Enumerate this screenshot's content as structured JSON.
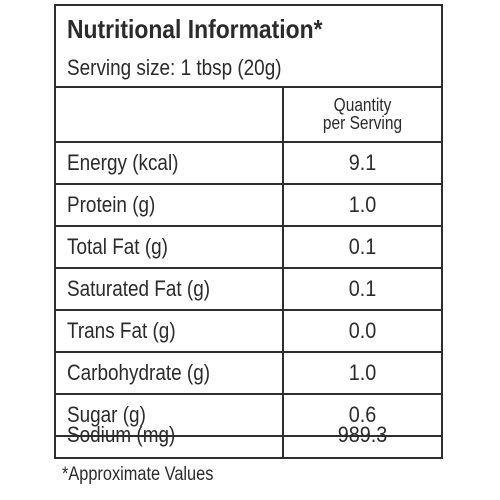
{
  "label": {
    "title": "Nutritional Information*",
    "serving_size": "Serving size: 1 tbsp (20g)",
    "column_header_line1": "Quantity",
    "column_header_line2": "per Serving",
    "rows": [
      {
        "nutrient": "Energy (kcal)",
        "value": "9.1"
      },
      {
        "nutrient": "Protein (g)",
        "value": "1.0"
      },
      {
        "nutrient": "Total Fat (g)",
        "value": "0.1"
      },
      {
        "nutrient": "Saturated Fat (g)",
        "value": "0.1"
      },
      {
        "nutrient": "Trans Fat (g)",
        "value": "0.0"
      },
      {
        "nutrient": "Carbohydrate (g)",
        "value": "1.0"
      },
      {
        "nutrient": "Sugar (g)",
        "value": "0.6"
      },
      {
        "nutrient": "Sodium (mg)",
        "value": "989.3"
      }
    ],
    "footnote": "*Approximate Values"
  },
  "colors": {
    "text": "#2b2b2b",
    "border": "#2e2e2e",
    "background": "#ffffff"
  }
}
